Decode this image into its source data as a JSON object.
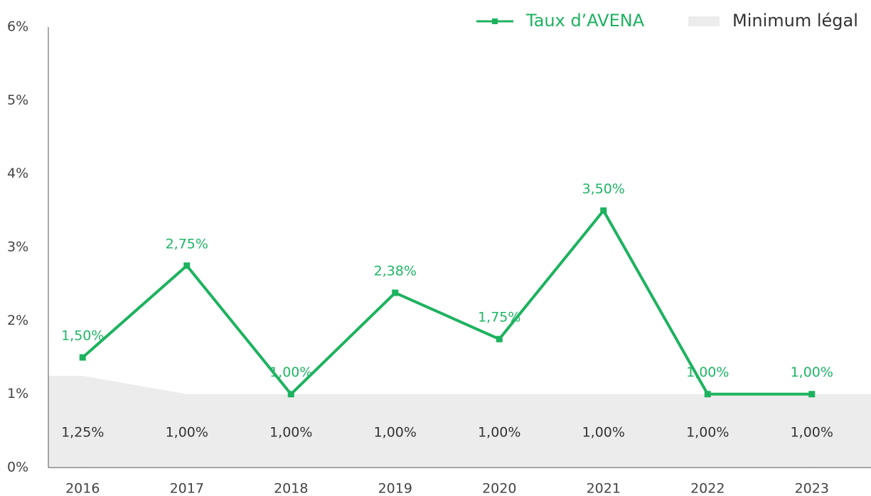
{
  "chart_data": {
    "type": "line",
    "categories": [
      "2016",
      "2017",
      "2018",
      "2019",
      "2020",
      "2021",
      "2022",
      "2023"
    ],
    "series": [
      {
        "name": "Taux d’AVENA",
        "type": "line",
        "color": "#1db25f",
        "values": [
          1.5,
          2.75,
          1.0,
          2.38,
          1.75,
          3.5,
          1.0,
          1.0
        ],
        "value_labels": [
          "1,50%",
          "2,75%",
          "1,00%",
          "2,38%",
          "1,75%",
          "3,50%",
          "1,00%",
          "1,00%"
        ]
      },
      {
        "name": "Minimum légal",
        "type": "area",
        "color": "#ececec",
        "values": [
          1.25,
          1.0,
          1.0,
          1.0,
          1.0,
          1.0,
          1.0,
          1.0
        ],
        "value_labels": [
          "1,25%",
          "1,00%",
          "1,00%",
          "1,00%",
          "1,00%",
          "1,00%",
          "1,00%",
          "1,00%"
        ]
      }
    ],
    "ylim": [
      0,
      6
    ],
    "yticks": [
      {
        "value": 0,
        "label": "0%"
      },
      {
        "value": 1,
        "label": "1%"
      },
      {
        "value": 2,
        "label": "2%"
      },
      {
        "value": 3,
        "label": "3%"
      },
      {
        "value": 4,
        "label": "4%"
      },
      {
        "value": 5,
        "label": "5%"
      },
      {
        "value": 6,
        "label": "6%"
      }
    ],
    "legend": "top-right"
  }
}
